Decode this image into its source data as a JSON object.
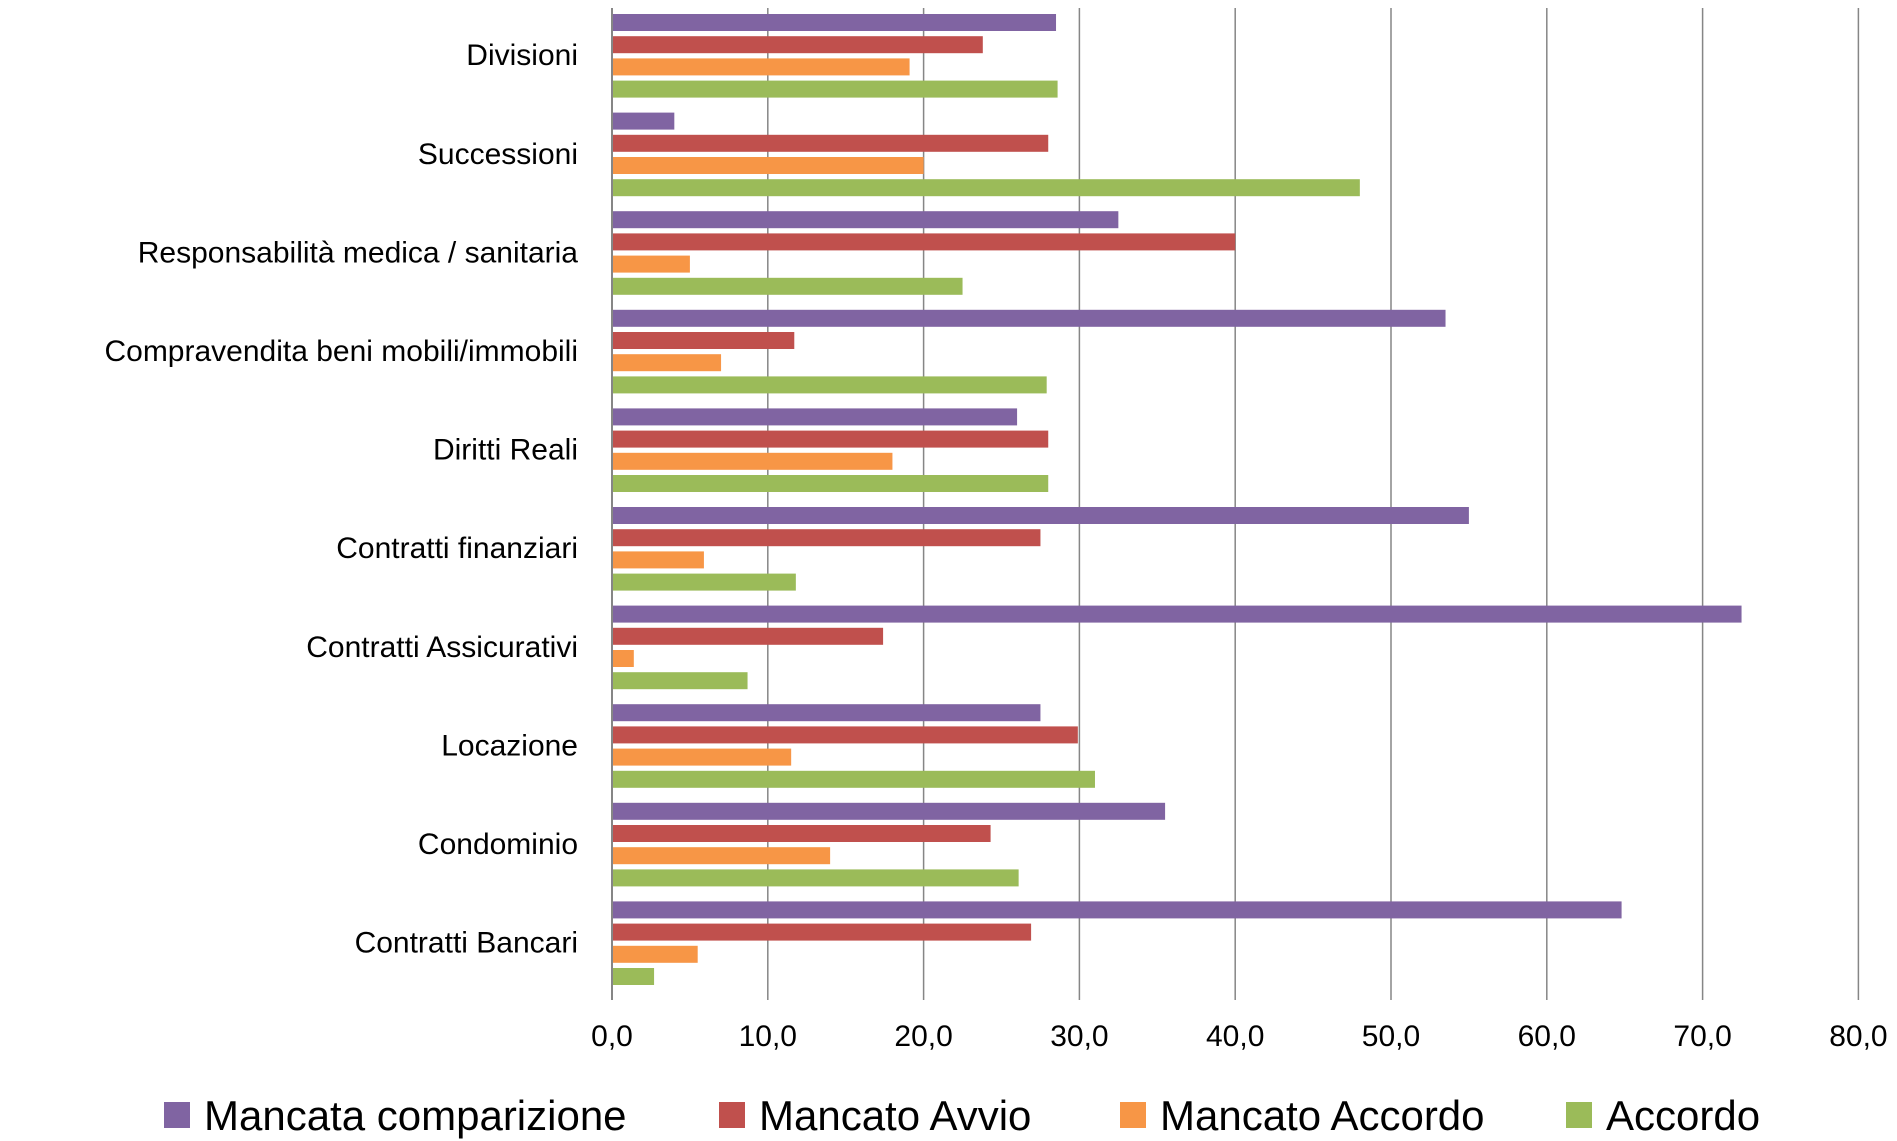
{
  "chart_data": {
    "type": "bar",
    "orientation": "horizontal",
    "title": "",
    "xlabel": "",
    "ylabel": "",
    "xlim": [
      0,
      80
    ],
    "xticks": [
      0,
      10,
      20,
      30,
      40,
      50,
      60,
      70,
      80
    ],
    "xtick_labels": [
      "0,0",
      "10,0",
      "20,0",
      "30,0",
      "40,0",
      "50,0",
      "60,0",
      "70,0",
      "80,0"
    ],
    "grid": "vertical major gridlines",
    "legend_position": "bottom",
    "categories": [
      "Divisioni",
      "Successioni",
      "Responsabilità medica / sanitaria",
      "Compravendita beni mobili/immobili",
      "Diritti Reali",
      "Contratti finanziari",
      "Contratti Assicurativi",
      "Locazione",
      "Condominio",
      "Contratti Bancari"
    ],
    "series": [
      {
        "name": "Mancata comparizione",
        "color": "#8064A2",
        "values": [
          28.5,
          4.0,
          32.5,
          53.5,
          26.0,
          55.0,
          72.5,
          27.5,
          35.5,
          64.8
        ]
      },
      {
        "name": "Mancato Avvio",
        "color": "#C0504D",
        "values": [
          23.8,
          28.0,
          40.0,
          11.7,
          28.0,
          27.5,
          17.4,
          29.9,
          24.3,
          26.9
        ]
      },
      {
        "name": "Mancato Accordo",
        "color": "#F79646",
        "values": [
          19.1,
          20.0,
          5.0,
          7.0,
          18.0,
          5.9,
          1.4,
          11.5,
          14.0,
          5.5
        ]
      },
      {
        "name": "Accordo",
        "color": "#9BBB59",
        "values": [
          28.6,
          48.0,
          22.5,
          27.9,
          28.0,
          11.8,
          8.7,
          31.0,
          26.1,
          2.7
        ]
      }
    ]
  }
}
